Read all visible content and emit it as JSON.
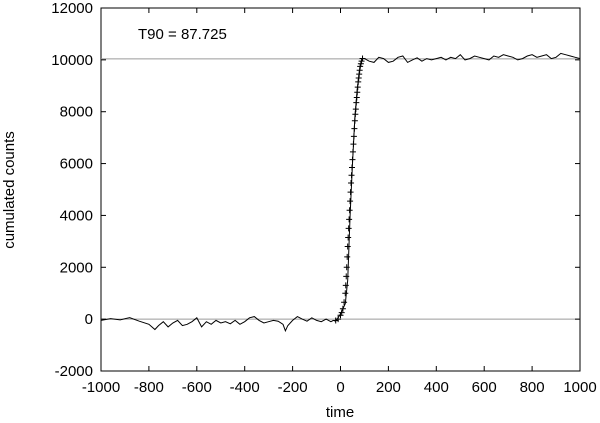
{
  "chart_data": {
    "type": "line",
    "annotation": "T90 = 87.725",
    "xlabel": "time",
    "ylabel": "cumulated counts",
    "xlim": [
      -1000,
      1000
    ],
    "ylim": [
      -2000,
      12000
    ],
    "xticks": [
      -1000,
      -800,
      -600,
      -400,
      -200,
      0,
      200,
      400,
      600,
      800,
      1000
    ],
    "yticks": [
      -2000,
      0,
      2000,
      4000,
      6000,
      8000,
      10000,
      12000
    ],
    "grid": false,
    "reference_lines": [
      0,
      10040
    ],
    "series": [
      {
        "style": "noisy-line",
        "x": [
          -1000,
          -960,
          -920,
          -880,
          -840,
          -800,
          -775,
          -760,
          -740,
          -720,
          -700,
          -680,
          -660,
          -640,
          -620,
          -600,
          -580,
          -560,
          -540,
          -520,
          -500,
          -480,
          -460,
          -440,
          -420,
          -400,
          -380,
          -360,
          -340,
          -320,
          -300,
          -280,
          -260,
          -240,
          -230,
          -220,
          -200,
          -180,
          -160,
          -140,
          -120,
          -100,
          -80,
          -60,
          -40,
          -30,
          -20,
          -10,
          0,
          10,
          20,
          30,
          40,
          50,
          60,
          70,
          80,
          90,
          100,
          120,
          140,
          160,
          180,
          200,
          220,
          240,
          260,
          280,
          300,
          320,
          340,
          360,
          380,
          400,
          420,
          440,
          460,
          480,
          500,
          520,
          540,
          560,
          580,
          600,
          620,
          640,
          660,
          680,
          700,
          720,
          740,
          760,
          780,
          800,
          820,
          840,
          860,
          880,
          900,
          920,
          940,
          960,
          980,
          1000
        ],
        "y": [
          -50,
          20,
          -30,
          60,
          -80,
          -200,
          -400,
          -250,
          -100,
          -300,
          -150,
          -50,
          -250,
          -200,
          -100,
          50,
          -300,
          -100,
          -200,
          -50,
          -150,
          -100,
          -180,
          -50,
          -200,
          -100,
          50,
          100,
          -50,
          -150,
          -100,
          -50,
          -80,
          -200,
          -450,
          -250,
          -50,
          100,
          0,
          -80,
          50,
          -50,
          -100,
          0,
          -100,
          -50,
          -80,
          50,
          200,
          400,
          600,
          1500,
          4000,
          6000,
          7800,
          8900,
          9600,
          10050,
          10050,
          9950,
          9900,
          10100,
          10050,
          9900,
          9950,
          10100,
          10150,
          9900,
          10000,
          10080,
          9950,
          10050,
          10000,
          10050,
          10100,
          10000,
          10100,
          10050,
          10200,
          10000,
          10050,
          10150,
          10100,
          10050,
          10000,
          10150,
          10100,
          10200,
          10150,
          10100,
          10000,
          10050,
          10150,
          10200,
          10100,
          10150,
          10200,
          10050,
          10100,
          10250,
          10200,
          10150,
          10100,
          10050
        ]
      },
      {
        "style": "plus-markers",
        "x": [
          -20,
          -10,
          0,
          5,
          10,
          15,
          20,
          22,
          24,
          26,
          28,
          30,
          32,
          34,
          36,
          38,
          40,
          42,
          44,
          46,
          48,
          50,
          52,
          54,
          56,
          58,
          60,
          62,
          64,
          66,
          68,
          70,
          72,
          74,
          76,
          78,
          80,
          82,
          85,
          88,
          92
        ],
        "y": [
          -50,
          0,
          150,
          250,
          400,
          650,
          1000,
          1300,
          1650,
          2000,
          2400,
          2800,
          3150,
          3500,
          3850,
          4200,
          4550,
          4900,
          5250,
          5550,
          5850,
          6150,
          6450,
          6750,
          7050,
          7350,
          7650,
          7900,
          8100,
          8350,
          8550,
          8750,
          8950,
          9150,
          9300,
          9450,
          9600,
          9750,
          9850,
          9950,
          10050
        ]
      }
    ]
  }
}
